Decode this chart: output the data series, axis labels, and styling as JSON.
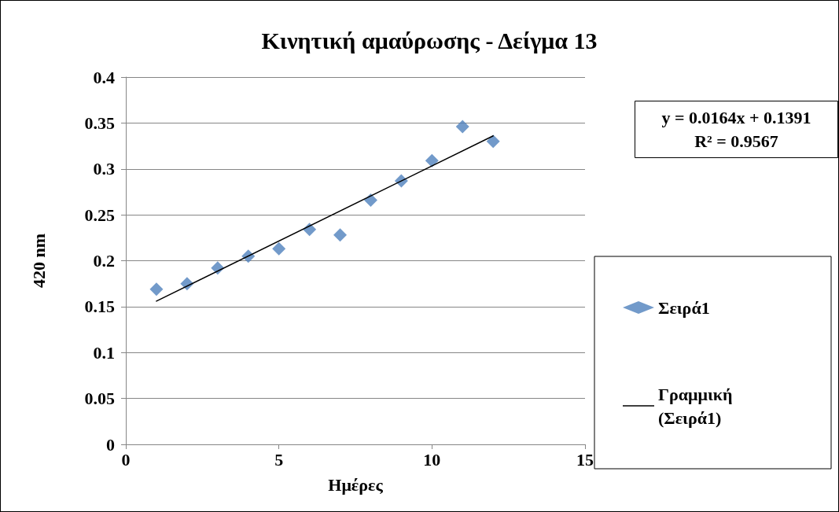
{
  "chart_data": {
    "type": "scatter",
    "title": "Κινητική αμαύρωσης - Δείγμα 13",
    "xlabel": "Ημέρες",
    "ylabel": "420 nm",
    "series": [
      {
        "name": "Σειρά1",
        "color": "#4f81bd",
        "marker": "diamond",
        "x": [
          1,
          2,
          3,
          4,
          5,
          6,
          7,
          8,
          9,
          10,
          11,
          12
        ],
        "values": [
          0.169,
          0.175,
          0.192,
          0.205,
          0.213,
          0.234,
          0.228,
          0.266,
          0.287,
          0.309,
          0.346,
          0.33
        ]
      },
      {
        "name": "Γραμμική (Σειρά1)",
        "type": "line",
        "color": "#000000",
        "marker": "none",
        "line_style": "solid",
        "x": [
          1,
          12
        ],
        "values": [
          0.156,
          0.336
        ]
      }
    ],
    "annotations": [
      "y = 0.0164x + 0.1391",
      "R² = 0.9567"
    ],
    "xlim": [
      0,
      15
    ],
    "xticks": [
      0,
      5,
      10,
      15
    ],
    "ylim": [
      0,
      0.4
    ],
    "yticks": [
      0,
      0.05,
      0.1,
      0.15,
      0.2,
      0.25,
      0.3,
      0.35,
      0.4
    ],
    "grid": "y",
    "legend": "right"
  }
}
